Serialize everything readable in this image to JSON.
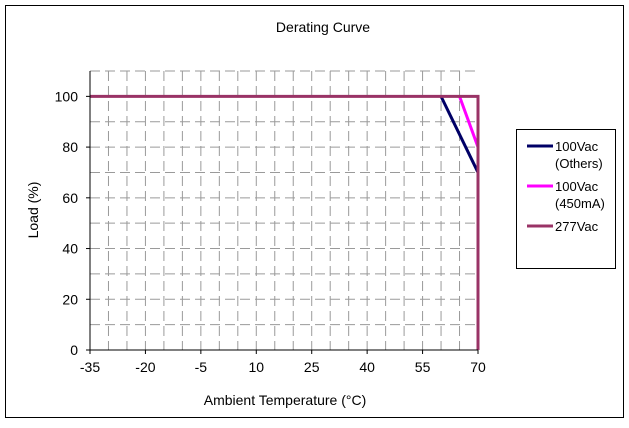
{
  "chart_data": {
    "type": "line",
    "title": "Derating Curve",
    "xlabel": "Ambient Temperature (°C)",
    "ylabel": "Load (%)",
    "xlim": [
      -35,
      70
    ],
    "ylim": [
      0,
      110
    ],
    "x_ticks": [
      -35,
      -20,
      -5,
      10,
      25,
      40,
      55,
      70
    ],
    "y_ticks": [
      0,
      20,
      40,
      60,
      80,
      100
    ],
    "grid": "dashed",
    "legend_position": "right",
    "series": [
      {
        "name": "100Vac (Others)",
        "legend_lines": [
          "100Vac",
          "(Others)"
        ],
        "color": "#000066",
        "points": [
          [
            60,
            100
          ],
          [
            70,
            70
          ]
        ]
      },
      {
        "name": "100Vac (450mA)",
        "legend_lines": [
          "100Vac",
          "(450mA)"
        ],
        "color": "#ff00ff",
        "points": [
          [
            65,
            100
          ],
          [
            70,
            80
          ]
        ]
      },
      {
        "name": "277Vac",
        "legend_lines": [
          "277Vac"
        ],
        "color": "#993366",
        "points": [
          [
            -35,
            100
          ],
          [
            70,
            100
          ],
          [
            70,
            0
          ]
        ]
      }
    ]
  }
}
